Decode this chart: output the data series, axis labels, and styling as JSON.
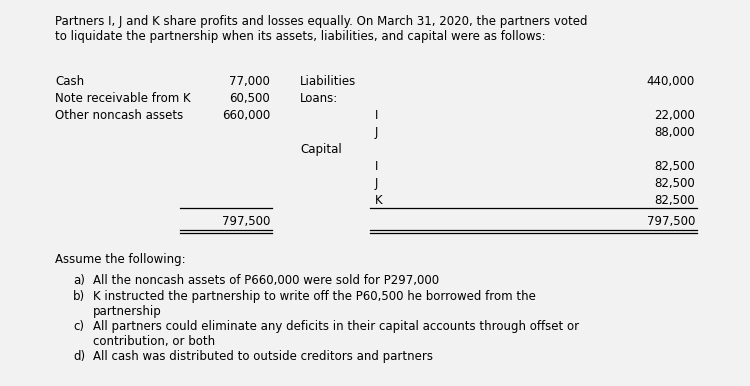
{
  "bg_color": "#f2f2f2",
  "title_text": "Partners I, J and K share profits and losses equally. On March 31, 2020, the partners voted\nto liquidate the partnership when its assets, liabilities, and capital were as follows:",
  "asset_labels": [
    "Cash",
    "Note receivable from K",
    "Other noncash assets"
  ],
  "asset_values": [
    "77,000",
    "60,500",
    "660,000"
  ],
  "right_rows": [
    {
      "main": "Liabilities",
      "sub": "",
      "value": "440,000"
    },
    {
      "main": "Loans:",
      "sub": "",
      "value": ""
    },
    {
      "main": "",
      "sub": "I",
      "value": "22,000"
    },
    {
      "main": "",
      "sub": "J",
      "value": "88,000"
    },
    {
      "main": "Capital",
      "sub": "",
      "value": ""
    },
    {
      "main": "",
      "sub": "I",
      "value": "82,500"
    },
    {
      "main": "",
      "sub": "J",
      "value": "82,500"
    },
    {
      "main": "",
      "sub": "K",
      "value": "82,500"
    }
  ],
  "total_value": "797,500",
  "assume_text": "Assume the following:",
  "bullet_items": [
    [
      "a)",
      "All the noncash assets of P660,000 were sold for P297,000"
    ],
    [
      "b)",
      "K instructed the partnership to write off the P60,500 he borrowed from the\npartnership"
    ],
    [
      "c)",
      "All partners could eliminate any deficits in their capital accounts through offset or\ncontribution, or both"
    ],
    [
      "d)",
      "All cash was distributed to outside creditors and partners"
    ]
  ],
  "font_size": 8.5
}
